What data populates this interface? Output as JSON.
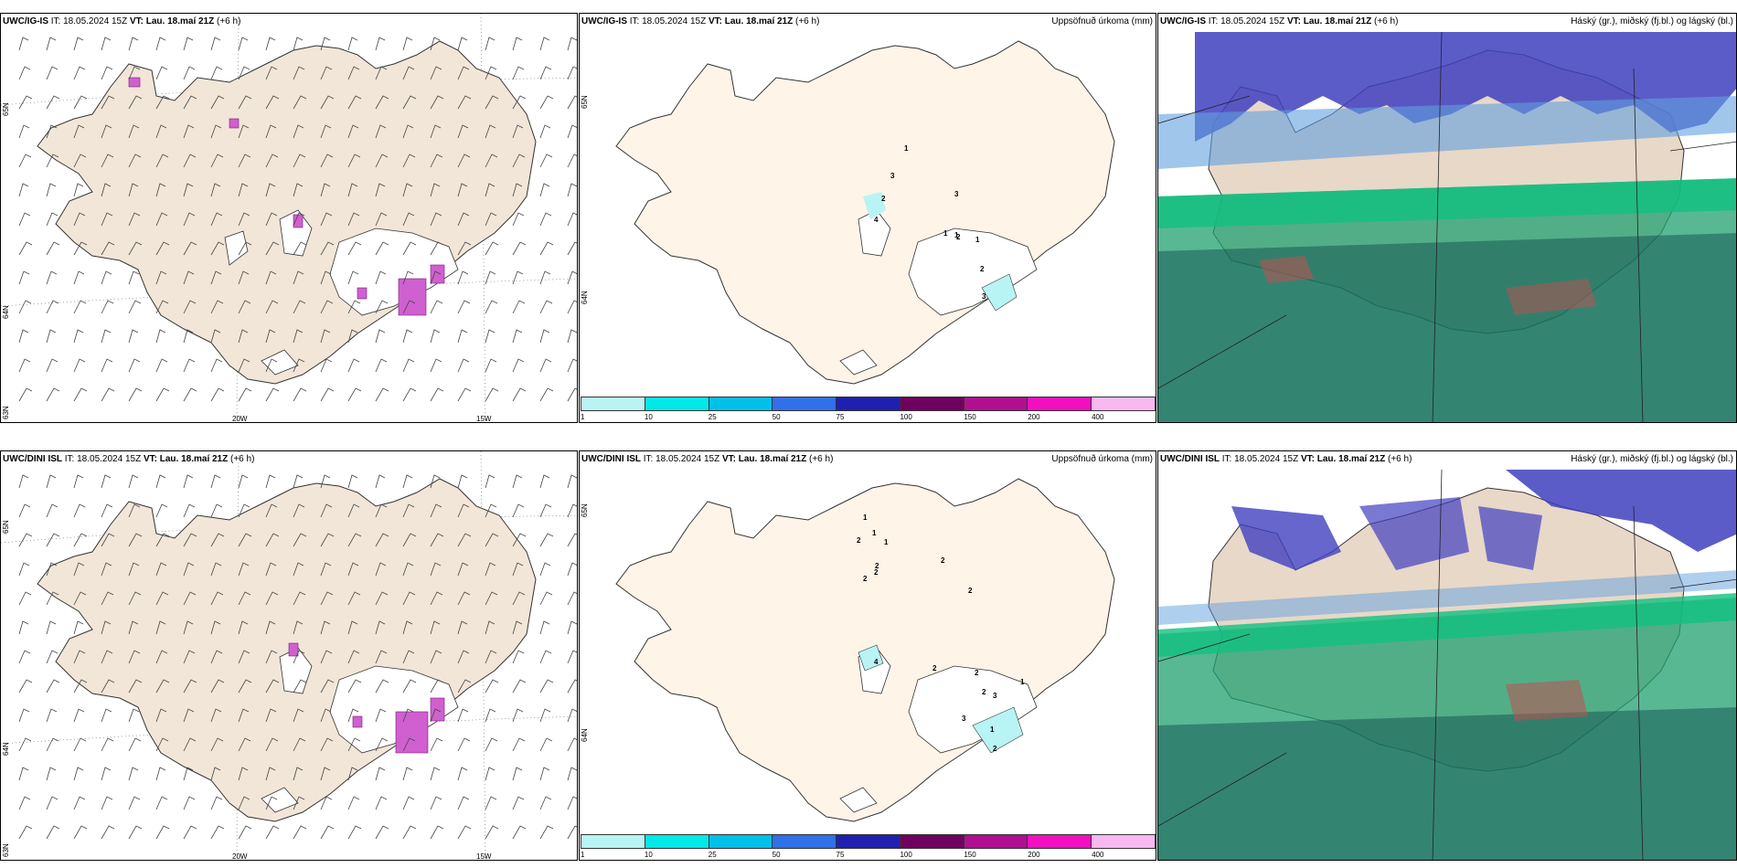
{
  "panels": [
    {
      "hdr_model": "UWC/IG-IS",
      "hdr_it": "IT: 18.05.2024 15Z",
      "hdr_vt_lbl": "VT:",
      "hdr_vt": "Lau. 18.maí 21Z",
      "hdr_lead": "(+6 h)",
      "right": "",
      "lat1": "65N",
      "lat2": "64N",
      "lat3": "63N",
      "lon1": "20W",
      "lon2": "15W"
    },
    {
      "hdr_model": "UWC/IG-IS",
      "hdr_it": "IT: 18.05.2024 15Z",
      "hdr_vt_lbl": "VT:",
      "hdr_vt": "Lau. 18.maí 21Z",
      "hdr_lead": "(+6 h)",
      "right": "Uppsöfnuð úrkoma (mm)",
      "lat1": "65N",
      "lat2": "64N"
    },
    {
      "hdr_model": "UWC/IG-IS",
      "hdr_it": "IT: 18.05.2024 15Z",
      "hdr_vt_lbl": "VT:",
      "hdr_vt": "Lau. 18.maí 21Z",
      "hdr_lead": "(+6 h)",
      "right": "Háský (gr.), miðský (fj.bl.) og lágský (bl.)"
    },
    {
      "hdr_model": "UWC/DINI ISL",
      "hdr_it": "IT: 18.05.2024 15Z",
      "hdr_vt_lbl": "VT:",
      "hdr_vt": "Lau. 18.maí 21Z",
      "hdr_lead": "(+6 h)",
      "right": "",
      "lat1": "65N",
      "lat2": "64N",
      "lat3": "63N",
      "lon1": "20W",
      "lon2": "15W"
    },
    {
      "hdr_model": "UWC/DINI ISL",
      "hdr_it": "IT: 18.05.2024 15Z",
      "hdr_vt_lbl": "VT:",
      "hdr_vt": "Lau. 18.maí 21Z",
      "hdr_lead": "(+6 h)",
      "right": "Uppsöfnuð úrkoma (mm)",
      "lat1": "65N",
      "lat2": "64N"
    },
    {
      "hdr_model": "UWC/DINI ISL",
      "hdr_it": "IT: 18.05.2024 15Z",
      "hdr_vt_lbl": "VT:",
      "hdr_vt": "Lau. 18.maí 21Z",
      "hdr_lead": "(+6 h)",
      "right": "Háský (gr.), miðský (fj.bl.) og lágský (bl.)"
    }
  ],
  "colorbar": {
    "colors": [
      "#b8f4f4",
      "#00e8e8",
      "#00c0e8",
      "#3070e8",
      "#2020b0",
      "#700060",
      "#b01090",
      "#f010c0",
      "#f8b8f0"
    ],
    "ticks": [
      "1",
      "10",
      "25",
      "50",
      "75",
      "100",
      "150",
      "200",
      "400"
    ]
  },
  "precip_labels_top": [
    "1",
    "3",
    "2",
    "4",
    "3",
    "1",
    "1",
    "2",
    "1",
    "2",
    "3"
  ],
  "precip_labels_bottom": [
    "1",
    "1",
    "2",
    "1",
    "2",
    "2",
    "2",
    "2",
    "2",
    "4",
    "2",
    "2",
    "2",
    "3",
    "3",
    "1",
    "1",
    "2"
  ],
  "colors": {
    "land": "#f2e6d8",
    "land_precip": "#fff4e8",
    "cloud_high": "#20a070",
    "cloud_mid": "#4040c0",
    "cloud_low": "#60a0e0"
  }
}
